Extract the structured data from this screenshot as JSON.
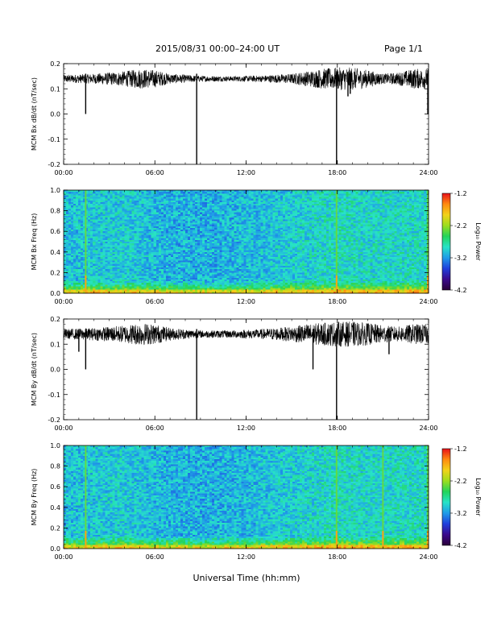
{
  "header": {
    "title": "2015/08/31  00:00–24:00 UT",
    "page": "Page 1/1"
  },
  "x_axis_title": "Universal Time (hh:mm)",
  "colors": {
    "trace": "#000000",
    "colormap": [
      "#2a0038",
      "#3b0a8c",
      "#1f3fdc",
      "#1f9be8",
      "#27e3c8",
      "#23d45a",
      "#9cdd1e",
      "#f2d21a",
      "#ff8a10",
      "#e8101a"
    ]
  },
  "chart_data": [
    {
      "type": "line",
      "id": "bx-timeseries",
      "ylabel": "MCM Bx dB/dt (nT/sec)",
      "x_ticks": [
        "00:00",
        "06:00",
        "12:00",
        "18:00",
        "24:00"
      ],
      "xlim": [
        0,
        24
      ],
      "ylim": [
        -0.2,
        0.2
      ],
      "y_ticks": [
        0.2,
        0.1,
        0.0,
        -0.1,
        -0.2
      ],
      "baseline": 0.14,
      "series": [
        {
          "noise_profile": {
            "x": [
              0,
              2,
              4,
              5,
              6,
              7,
              9,
              11,
              13,
              15,
              16,
              17,
              18,
              19,
              20,
              21,
              22,
              23,
              24
            ],
            "amp": [
              0.015,
              0.02,
              0.03,
              0.04,
              0.035,
              0.02,
              0.012,
              0.01,
              0.013,
              0.02,
              0.03,
              0.04,
              0.045,
              0.045,
              0.035,
              0.02,
              0.025,
              0.04,
              0.04
            ]
          },
          "spikes": [
            {
              "x": 1.45,
              "y": 0.0
            },
            {
              "x": 8.75,
              "y": -0.2
            },
            {
              "x": 17.95,
              "y": -0.2
            },
            {
              "x": 23.95,
              "y": 0.0
            },
            {
              "x": 18.7,
              "y": 0.07
            },
            {
              "x": 18.85,
              "y": 0.08
            }
          ]
        }
      ]
    },
    {
      "type": "heatmap",
      "id": "bx-spectrogram",
      "ylabel": "MCM Bx Freq (Hz)",
      "x_ticks": [
        "00:00",
        "06:00",
        "12:00",
        "18:00",
        "24:00"
      ],
      "xlim": [
        0,
        24
      ],
      "ylim": [
        0.0,
        1.0
      ],
      "y_ticks": [
        "1.0",
        "0.8",
        "0.6",
        "0.4",
        "0.2",
        "0.0"
      ],
      "colorbar": {
        "label": "Log₁₀ Power",
        "range": [
          -4.2,
          -1.2
        ],
        "ticks": [
          "-1.2",
          "-2.2",
          "-3.2",
          "-4.2"
        ]
      },
      "harmonic_spacing_hz": 0.05,
      "bright_columns_hours": [
        1.45,
        17.95,
        23.95
      ]
    },
    {
      "type": "line",
      "id": "by-timeseries",
      "ylabel": "MCM By dB/dt (nT/sec)",
      "x_ticks": [
        "00:00",
        "06:00",
        "12:00",
        "18:00",
        "24:00"
      ],
      "xlim": [
        0,
        24
      ],
      "ylim": [
        -0.2,
        0.2
      ],
      "y_ticks": [
        0.2,
        0.1,
        0.0,
        -0.1,
        -0.2
      ],
      "baseline": 0.14,
      "series": [
        {
          "noise_profile": {
            "x": [
              0,
              2,
              4,
              5,
              6,
              7,
              9,
              11,
              13,
              15,
              16,
              17,
              18,
              19,
              20,
              21,
              22,
              23,
              24
            ],
            "amp": [
              0.02,
              0.025,
              0.035,
              0.045,
              0.04,
              0.025,
              0.015,
              0.015,
              0.02,
              0.03,
              0.04,
              0.045,
              0.05,
              0.05,
              0.045,
              0.035,
              0.03,
              0.04,
              0.04
            ]
          },
          "spikes": [
            {
              "x": 1.0,
              "y": 0.07
            },
            {
              "x": 1.45,
              "y": 0.0
            },
            {
              "x": 8.75,
              "y": -0.2
            },
            {
              "x": 16.4,
              "y": 0.0
            },
            {
              "x": 17.95,
              "y": -0.2
            },
            {
              "x": 21.4,
              "y": 0.06
            }
          ]
        }
      ]
    },
    {
      "type": "heatmap",
      "id": "by-spectrogram",
      "ylabel": "MCM By Freq (Hz)",
      "x_ticks": [
        "00:00",
        "06:00",
        "12:00",
        "18:00",
        "24:00"
      ],
      "xlim": [
        0,
        24
      ],
      "ylim": [
        0.0,
        1.0
      ],
      "y_ticks": [
        "1.0",
        "0.8",
        "0.6",
        "0.4",
        "0.2",
        "0.0"
      ],
      "colorbar": {
        "label": "Log₁₀ Power",
        "range": [
          -4.2,
          -1.2
        ],
        "ticks": [
          "-1.2",
          "-2.2",
          "-3.2",
          "-4.2"
        ]
      },
      "harmonic_spacing_hz": 0.05,
      "bright_columns_hours": [
        1.45,
        17.95,
        21.0,
        23.95
      ]
    }
  ]
}
